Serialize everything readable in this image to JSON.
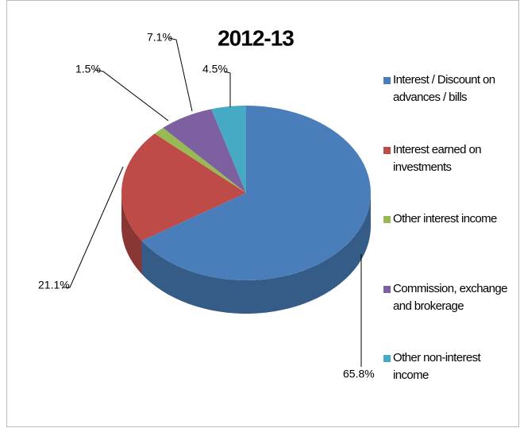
{
  "chart_data": {
    "type": "pie",
    "title": "2012-13",
    "categories": [
      "Interest / Discount on advances / bills",
      "Interest earned on investments",
      "Other interest income",
      "Commission, exchange and brokerage",
      "Other non-interest income"
    ],
    "values": [
      65.8,
      21.1,
      1.5,
      7.1,
      4.5
    ],
    "value_labels": [
      "65.8%",
      "21.1%",
      "1.5%",
      "7.1%",
      "4.5%"
    ],
    "colors": [
      "#4a7ebb",
      "#be4b48",
      "#98b954",
      "#7d60a0",
      "#46aac5"
    ],
    "legend": "right"
  }
}
